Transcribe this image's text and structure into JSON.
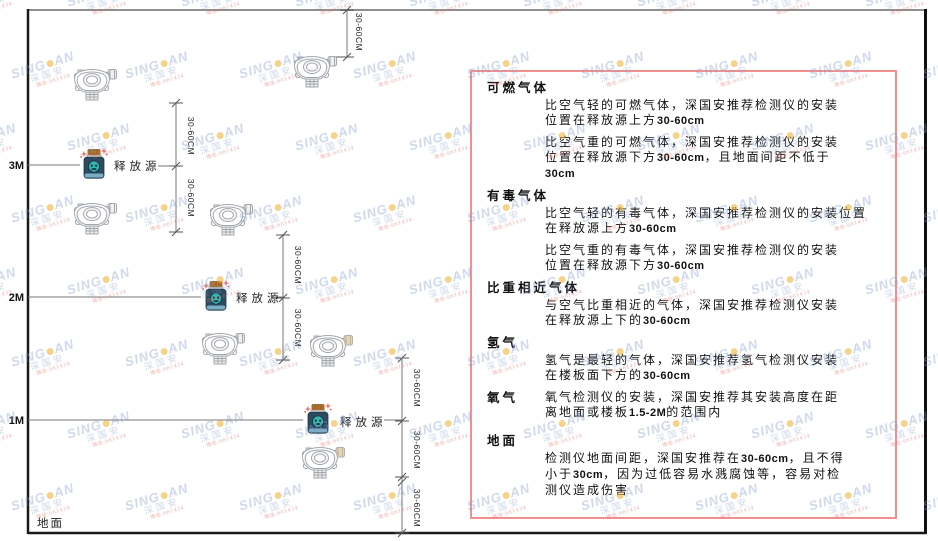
{
  "diagram": {
    "height_labels": [
      "3M",
      "2M",
      "1M"
    ],
    "ground_label": "地面",
    "source_label": "释放源",
    "dim_label": "30-60CM"
  },
  "panel": {
    "sections": [
      {
        "heading": "可燃气体",
        "paragraphs": [
          [
            "比空气轻的可燃气体，深国安推荐检测仪的安装",
            "位置在释放源上方30-60cm"
          ],
          [
            "比空气重的可燃气体，深国安推荐检测仪的安装",
            "位置在释放源下方30-60cm，且地面间距不低于",
            "30cm"
          ]
        ]
      },
      {
        "heading": "有毒气体",
        "paragraphs": [
          [
            "比空气轻的有毒气体，深国安推荐检测仪的安装位置",
            "在释放源上方30-60cm"
          ],
          [
            "比空气重的有毒气体，深国安推荐检测仪的安装",
            "位置在释放源下方30-60cm"
          ]
        ]
      },
      {
        "heading": "比重相近气体",
        "paragraphs": [
          [
            "与空气比重相近的气体，深国安推荐检测仪安装",
            "在释放源上下的30-60cm"
          ]
        ]
      },
      {
        "heading": "氢气",
        "paragraphs": [
          [
            "氢气是最轻的气体，深国安推荐氢气检测仪安装",
            "在楼板面下方的30-60cm"
          ]
        ]
      },
      {
        "heading": "氧气",
        "inline": true,
        "paragraphs": [
          [
            "氧气检测仪的安装，深国安推荐其安装高度在距",
            "离地面或楼板1.5-2M的范围内"
          ]
        ]
      },
      {
        "heading": "地面",
        "paragraphs": [
          [
            "检测仪地面间距，深国安推荐在30-60cm，且不得",
            "小于30cm，因为过低容易水溅腐蚀等，容易对检",
            "测仪造成伤害"
          ]
        ]
      }
    ]
  },
  "watermark": {
    "brand_left": "SING",
    "brand_right": "AN",
    "cjk": "深国安",
    "contact": "微信:661434"
  },
  "colors": {
    "panel_border": "#f0908f",
    "source_body": "#2c4a60",
    "source_cap": "#b5722a",
    "source_face": "#35b3ae",
    "watermark_blue": "#809ccc",
    "watermark_dot": "#f0b43c"
  }
}
